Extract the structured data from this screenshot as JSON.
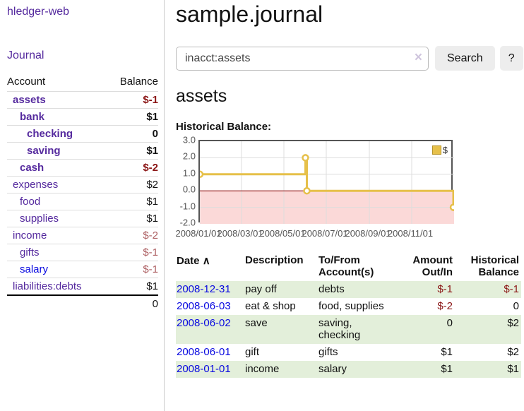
{
  "colors": {
    "link_purple": "#552a9e",
    "link_blue": "#0a0ae0",
    "negative_bold": "#8b1616",
    "negative_muted": "#ad5f62",
    "row_green": "#e3efda",
    "chart_line_gold": "#e6c04a",
    "chart_negative_bg": "#fbd9d8",
    "zero_line_red": "#8b0000"
  },
  "sidebar": {
    "app_title": "hledger-web",
    "nav_journal": "Journal",
    "table": {
      "col_account": "Account",
      "col_balance": "Balance",
      "rows": [
        {
          "name": "assets",
          "indent": 1,
          "bold": true,
          "link": "visited",
          "amount": "$-1",
          "negative": true
        },
        {
          "name": "bank",
          "indent": 2,
          "bold": true,
          "link": "visited",
          "amount": "$1",
          "negative": false
        },
        {
          "name": "checking",
          "indent": 3,
          "bold": true,
          "link": "visited",
          "amount": "0",
          "negative": false
        },
        {
          "name": "saving",
          "indent": 3,
          "bold": true,
          "link": "visited",
          "amount": "$1",
          "negative": false
        },
        {
          "name": "cash",
          "indent": 2,
          "bold": true,
          "link": "visited",
          "amount": "$-2",
          "negative": true
        },
        {
          "name": "expenses",
          "indent": 1,
          "bold": false,
          "link": "visited",
          "amount": "$2",
          "negative": false
        },
        {
          "name": "food",
          "indent": 2,
          "bold": false,
          "link": "visited",
          "amount": "$1",
          "negative": false
        },
        {
          "name": "supplies",
          "indent": 2,
          "bold": false,
          "link": "visited",
          "amount": "$1",
          "negative": false
        },
        {
          "name": "income",
          "indent": 1,
          "bold": false,
          "link": "visited",
          "amount": "$-2",
          "negative": true
        },
        {
          "name": "gifts",
          "indent": 2,
          "bold": false,
          "link": "visited",
          "amount": "$-1",
          "negative": true
        },
        {
          "name": "salary",
          "indent": 2,
          "bold": false,
          "link": "unvisited",
          "amount": "$-1",
          "negative": true
        },
        {
          "name": "liabilities:debts",
          "indent": 1,
          "bold": false,
          "link": "visited",
          "amount": "$1",
          "negative": false
        }
      ],
      "total": "0"
    }
  },
  "main": {
    "page_title": "sample.journal",
    "search": {
      "value": "inacct:assets",
      "clear_icon": "×",
      "button_label": "Search",
      "help_label": "?"
    },
    "account_heading": "assets",
    "chart_label": "Historical Balance:",
    "transactions": {
      "columns": [
        {
          "label": "Date",
          "sort_icon": "∧",
          "align": "left"
        },
        {
          "label": "Description",
          "align": "left"
        },
        {
          "label": "To/From Account(s)",
          "align": "left"
        },
        {
          "label": "Amount Out/In",
          "align": "right"
        },
        {
          "label": "Historical Balance",
          "align": "right"
        }
      ],
      "rows": [
        {
          "date": "2008-12-31",
          "description": "pay off",
          "accounts": "debts",
          "amount": "$-1",
          "amount_negative": true,
          "balance": "$-1",
          "balance_negative": true,
          "shaded": true
        },
        {
          "date": "2008-06-03",
          "description": "eat & shop",
          "accounts": "food, supplies",
          "amount": "$-2",
          "amount_negative": true,
          "balance": "0",
          "balance_negative": false,
          "shaded": false
        },
        {
          "date": "2008-06-02",
          "description": "save",
          "accounts": "saving, checking",
          "amount": "0",
          "amount_negative": false,
          "balance": "$2",
          "balance_negative": false,
          "shaded": true
        },
        {
          "date": "2008-06-01",
          "description": "gift",
          "accounts": "gifts",
          "amount": "$1",
          "amount_negative": false,
          "balance": "$2",
          "balance_negative": false,
          "shaded": false
        },
        {
          "date": "2008-01-01",
          "description": "income",
          "accounts": "salary",
          "amount": "$1",
          "amount_negative": false,
          "balance": "$1",
          "balance_negative": false,
          "shaded": true
        }
      ]
    }
  },
  "chart_data": {
    "type": "line",
    "title": "Historical Balance",
    "step": true,
    "series": [
      {
        "name": "$",
        "points": [
          [
            "2008-01-01",
            1
          ],
          [
            "2008-06-01",
            2
          ],
          [
            "2008-06-03",
            0
          ],
          [
            "2008-12-31",
            -1
          ]
        ]
      }
    ],
    "x_ticks": [
      "2008/01/01",
      "2008/03/01",
      "2008/05/01",
      "2008/07/01",
      "2008/09/01",
      "2008/11/01"
    ],
    "y_ticks": [
      "3.0",
      "2.0",
      "1.0",
      "0.0",
      "-1.0",
      "-2.0"
    ],
    "xlim": [
      "2008-01-01",
      "2009-01-01"
    ],
    "ylim": [
      -2,
      3
    ],
    "legend": "$",
    "legend_position": "top-right",
    "grid": true,
    "negative_region_shaded": true
  }
}
